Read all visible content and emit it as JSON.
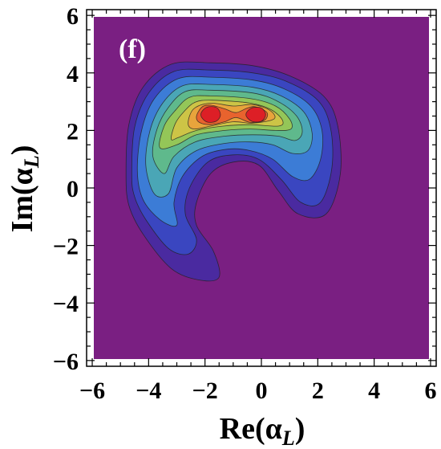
{
  "chart_data": {
    "type": "contour",
    "panel_label": "(f)",
    "xlabel": "Re(α",
    "xlabel_sub": "L",
    "ylabel": "Im(α",
    "ylabel_sub": "L",
    "xlim": [
      -6.2,
      6.2
    ],
    "ylim": [
      -6.2,
      6.2
    ],
    "x_ticks": [
      -6,
      -4,
      -2,
      0,
      2,
      4,
      6
    ],
    "y_ticks": [
      -6,
      -4,
      -2,
      0,
      2,
      4,
      6
    ],
    "x_tick_labels": [
      "−6",
      "−4",
      "−2",
      "0",
      "2",
      "4",
      "6"
    ],
    "y_tick_labels": [
      "−6",
      "−4",
      "−2",
      "0",
      "2",
      "4",
      "6"
    ],
    "background_color": "#7a1f82",
    "peaks": [
      {
        "x": -1.8,
        "y": 2.55
      },
      {
        "x": -0.2,
        "y": 2.55
      }
    ],
    "levels": [
      {
        "color": "#4a2aa0",
        "path": [
          [
            -4.8,
            0.5
          ],
          [
            -4.7,
            2.2
          ],
          [
            -4.2,
            3.5
          ],
          [
            -3.2,
            4.3
          ],
          [
            -1.8,
            4.35
          ],
          [
            -0.3,
            4.25
          ],
          [
            1.0,
            3.9
          ],
          [
            2.2,
            3.2
          ],
          [
            2.7,
            2.2
          ],
          [
            2.8,
            0.5
          ],
          [
            2.3,
            -0.9
          ],
          [
            1.3,
            -0.9
          ],
          [
            0.6,
            -0.1
          ],
          [
            -0.1,
            0.8
          ],
          [
            -1.0,
            0.9
          ],
          [
            -1.8,
            0.5
          ],
          [
            -2.3,
            -0.5
          ],
          [
            -2.3,
            -1.3
          ],
          [
            -1.7,
            -2.2
          ],
          [
            -1.5,
            -3.1
          ],
          [
            -2.2,
            -3.2
          ],
          [
            -3.2,
            -2.8
          ],
          [
            -4.2,
            -1.6
          ],
          [
            -4.7,
            -0.6
          ]
        ]
      },
      {
        "color": "#3a46c0",
        "path": [
          [
            -4.6,
            0.5
          ],
          [
            -4.5,
            2.1
          ],
          [
            -4.0,
            3.3
          ],
          [
            -3.1,
            4.05
          ],
          [
            -1.8,
            4.1
          ],
          [
            -0.3,
            4.0
          ],
          [
            0.9,
            3.7
          ],
          [
            2.0,
            3.05
          ],
          [
            2.45,
            2.1
          ],
          [
            2.5,
            0.7
          ],
          [
            2.1,
            -0.5
          ],
          [
            1.4,
            -0.5
          ],
          [
            0.7,
            0.3
          ],
          [
            -0.1,
            1.0
          ],
          [
            -1.0,
            1.15
          ],
          [
            -1.9,
            0.9
          ],
          [
            -2.55,
            0.0
          ],
          [
            -2.7,
            -0.9
          ],
          [
            -2.3,
            -1.8
          ],
          [
            -2.6,
            -2.3
          ],
          [
            -3.3,
            -2.1
          ],
          [
            -4.1,
            -1.1
          ],
          [
            -4.5,
            -0.3
          ]
        ]
      },
      {
        "color": "#3c7cd6",
        "path": [
          [
            -4.4,
            0.6
          ],
          [
            -4.25,
            2.0
          ],
          [
            -3.8,
            3.1
          ],
          [
            -2.95,
            3.8
          ],
          [
            -1.8,
            3.85
          ],
          [
            -0.3,
            3.75
          ],
          [
            0.8,
            3.45
          ],
          [
            1.75,
            2.85
          ],
          [
            2.15,
            2.0
          ],
          [
            2.1,
            1.0
          ],
          [
            1.7,
            0.3
          ],
          [
            1.1,
            0.4
          ],
          [
            0.4,
            1.0
          ],
          [
            -0.4,
            1.3
          ],
          [
            -1.2,
            1.35
          ],
          [
            -2.1,
            1.1
          ],
          [
            -2.8,
            0.4
          ],
          [
            -3.1,
            -0.5
          ],
          [
            -3.0,
            -1.3
          ],
          [
            -3.6,
            -1.1
          ],
          [
            -4.2,
            -0.4
          ]
        ]
      },
      {
        "color": "#4aa6b6",
        "path": [
          [
            -4.1,
            0.8
          ],
          [
            -3.95,
            2.0
          ],
          [
            -3.5,
            2.95
          ],
          [
            -2.8,
            3.55
          ],
          [
            -1.8,
            3.6
          ],
          [
            -0.3,
            3.5
          ],
          [
            0.7,
            3.2
          ],
          [
            1.5,
            2.65
          ],
          [
            1.8,
            1.9
          ],
          [
            1.65,
            1.3
          ],
          [
            1.1,
            1.2
          ],
          [
            0.4,
            1.5
          ],
          [
            -0.4,
            1.6
          ],
          [
            -1.3,
            1.55
          ],
          [
            -2.3,
            1.3
          ],
          [
            -3.0,
            0.7
          ],
          [
            -3.3,
            -0.2
          ],
          [
            -3.8,
            -0.2
          ]
        ]
      },
      {
        "color": "#5fb98c",
        "path": [
          [
            -3.85,
            1.1
          ],
          [
            -3.7,
            2.05
          ],
          [
            -3.3,
            2.8
          ],
          [
            -2.7,
            3.35
          ],
          [
            -1.8,
            3.4
          ],
          [
            -0.3,
            3.3
          ],
          [
            0.6,
            3.0
          ],
          [
            1.25,
            2.5
          ],
          [
            1.45,
            1.95
          ],
          [
            1.2,
            1.65
          ],
          [
            0.6,
            1.8
          ],
          [
            -0.3,
            1.85
          ],
          [
            -1.3,
            1.8
          ],
          [
            -2.35,
            1.6
          ],
          [
            -3.1,
            1.1
          ],
          [
            -3.45,
            0.5
          ]
        ]
      },
      {
        "color": "#94c658",
        "path": [
          [
            -3.6,
            1.4
          ],
          [
            -3.45,
            2.15
          ],
          [
            -3.05,
            2.7
          ],
          [
            -2.55,
            3.15
          ],
          [
            -1.8,
            3.2
          ],
          [
            -0.35,
            3.1
          ],
          [
            0.5,
            2.85
          ],
          [
            1.0,
            2.4
          ],
          [
            1.05,
            2.05
          ],
          [
            0.5,
            2.0
          ],
          [
            -0.4,
            2.05
          ],
          [
            -1.3,
            2.0
          ],
          [
            -2.3,
            1.85
          ],
          [
            -3.0,
            1.5
          ]
        ]
      },
      {
        "color": "#cdc446",
        "path": [
          [
            -3.2,
            1.7
          ],
          [
            -3.05,
            2.25
          ],
          [
            -2.75,
            2.65
          ],
          [
            -2.35,
            2.98
          ],
          [
            -1.75,
            3.05
          ],
          [
            -0.4,
            2.95
          ],
          [
            0.35,
            2.72
          ],
          [
            0.75,
            2.35
          ],
          [
            0.6,
            2.15
          ],
          [
            -0.4,
            2.2
          ],
          [
            -1.35,
            2.15
          ],
          [
            -2.3,
            2.0
          ],
          [
            -2.95,
            1.75
          ]
        ]
      },
      {
        "color": "#e8a43c",
        "path": [
          [
            -2.6,
            2.25
          ],
          [
            -2.4,
            2.75
          ],
          [
            -1.8,
            2.95
          ],
          [
            -1.0,
            2.85
          ],
          [
            -0.3,
            2.9
          ],
          [
            0.3,
            2.7
          ],
          [
            0.45,
            2.4
          ],
          [
            -0.3,
            2.25
          ],
          [
            -1.0,
            2.3
          ],
          [
            -1.8,
            2.15
          ],
          [
            -2.4,
            2.05
          ]
        ]
      },
      {
        "color": "#e8632e",
        "path": [
          [
            -2.3,
            2.5
          ],
          [
            -2.1,
            2.82
          ],
          [
            -1.8,
            2.88
          ],
          [
            -1.3,
            2.75
          ],
          [
            -0.9,
            2.62
          ],
          [
            -0.5,
            2.78
          ],
          [
            -0.2,
            2.82
          ],
          [
            0.2,
            2.62
          ],
          [
            0.1,
            2.35
          ],
          [
            -0.4,
            2.28
          ],
          [
            -0.9,
            2.45
          ],
          [
            -1.3,
            2.3
          ],
          [
            -1.8,
            2.2
          ],
          [
            -2.2,
            2.28
          ]
        ]
      },
      {
        "color": "#dd1f26",
        "path": [
          [
            -2.15,
            2.55
          ],
          [
            -1.95,
            2.8
          ],
          [
            -1.6,
            2.8
          ],
          [
            -1.45,
            2.55
          ],
          [
            -1.6,
            2.32
          ],
          [
            -1.95,
            2.3
          ]
        ]
      },
      {
        "color": "#dd1f26",
        "path": [
          [
            -0.55,
            2.55
          ],
          [
            -0.35,
            2.78
          ],
          [
            0.0,
            2.78
          ],
          [
            0.15,
            2.55
          ],
          [
            0.0,
            2.32
          ],
          [
            -0.35,
            2.32
          ]
        ]
      }
    ]
  }
}
